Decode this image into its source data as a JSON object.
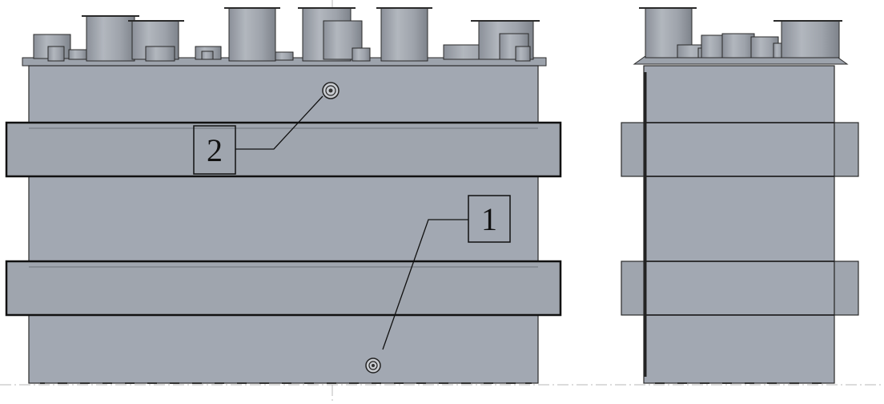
{
  "drawing": {
    "background": "#ffffff",
    "body_color": "#a2a8b2",
    "band_color": "#9fa5ae",
    "edge_color": "#1c1c1c",
    "nozzle_color": "#9aa0aa"
  },
  "views": {
    "front": {
      "callouts": [
        {
          "label": "2"
        },
        {
          "label": "1"
        }
      ]
    }
  }
}
